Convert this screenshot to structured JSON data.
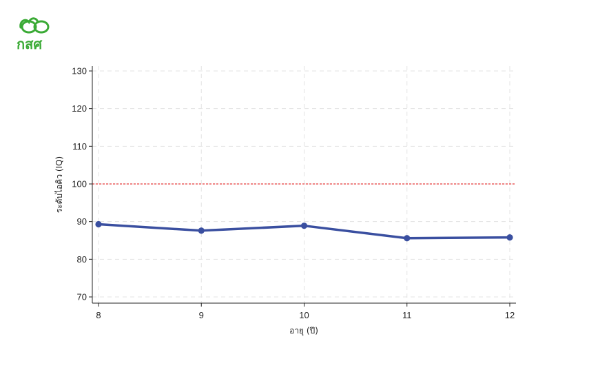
{
  "logo": {
    "text": "กสศ",
    "color": "#3aaa35"
  },
  "chart_data": {
    "type": "line",
    "x": [
      8,
      9,
      10,
      11,
      12
    ],
    "series": [
      {
        "values": [
          89.3,
          87.6,
          88.9,
          85.6,
          85.8
        ],
        "color": "#3a4fa0"
      }
    ],
    "reference_line": {
      "y": 100,
      "color": "#e83a3a",
      "style": "dashed"
    },
    "xlabel": "อายุ (ปี)",
    "ylabel": "ระดับไอคิว (IQ)",
    "xlim": [
      8,
      12
    ],
    "ylim": [
      68,
      132
    ],
    "xticks": [
      8,
      9,
      10,
      11,
      12
    ],
    "yticks": [
      70,
      80,
      90,
      100,
      110,
      120,
      130
    ],
    "grid": true
  }
}
